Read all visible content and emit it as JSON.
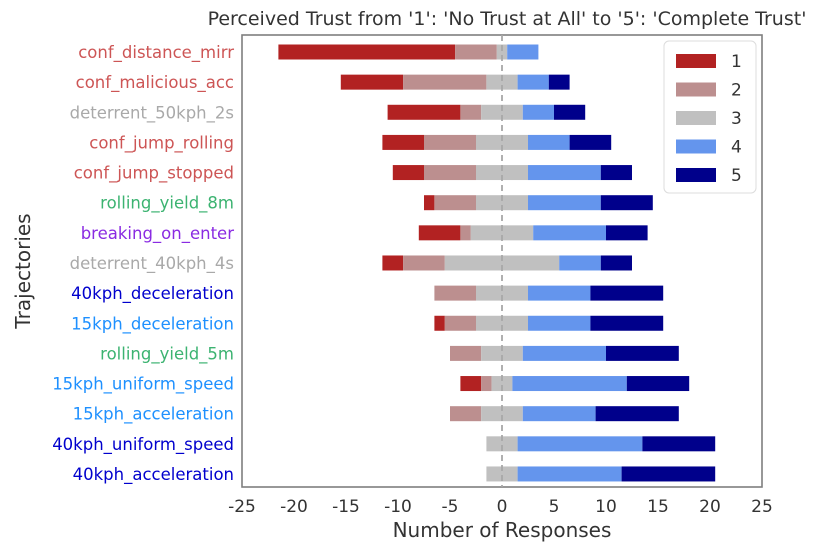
{
  "chart_data": {
    "type": "bar",
    "orientation": "horizontal-diverging",
    "title": "Perceived Trust from '1': 'No Trust at All' to '5': 'Complete Trust'",
    "xlabel": "Number of Responses",
    "ylabel": "Trajectories",
    "xlim": [
      -25,
      25
    ],
    "xticks": [
      -25,
      -20,
      -15,
      -10,
      -5,
      0,
      5,
      10,
      15,
      20,
      25
    ],
    "zero_line": "dashed",
    "legend_position": "top-right",
    "legend": [
      {
        "label": "1",
        "color": "#b22222"
      },
      {
        "label": "2",
        "color": "#bc8f8f"
      },
      {
        "label": "3",
        "color": "#c0c0c0"
      },
      {
        "label": "4",
        "color": "#6495ed"
      },
      {
        "label": "5",
        "color": "#00008b"
      }
    ],
    "categories": [
      {
        "name": "conf_distance_mirr",
        "color": "#cd5555"
      },
      {
        "name": "conf_malicious_acc",
        "color": "#cd5555"
      },
      {
        "name": "deterrent_50kph_2s",
        "color": "#a9a9a9"
      },
      {
        "name": "conf_jump_rolling",
        "color": "#cd5555"
      },
      {
        "name": "conf_jump_stopped",
        "color": "#cd5555"
      },
      {
        "name": "rolling_yield_8m",
        "color": "#3cb371"
      },
      {
        "name": "breaking_on_enter",
        "color": "#8a2be2"
      },
      {
        "name": "deterrent_40kph_4s",
        "color": "#a9a9a9"
      },
      {
        "name": "40kph_deceleration",
        "color": "#0000cd"
      },
      {
        "name": "15kph_deceleration",
        "color": "#1e90ff"
      },
      {
        "name": "rolling_yield_5m",
        "color": "#3cb371"
      },
      {
        "name": "15kph_uniform_speed",
        "color": "#1e90ff"
      },
      {
        "name": "15kph_acceleration",
        "color": "#1e90ff"
      },
      {
        "name": "40kph_uniform_speed",
        "color": "#0000cd"
      },
      {
        "name": "40kph_acceleration",
        "color": "#0000cd"
      }
    ],
    "series": [
      {
        "name": "1",
        "values": [
          17,
          6,
          7,
          4,
          3,
          1,
          4,
          2,
          0,
          1,
          0,
          2,
          0,
          0,
          0
        ]
      },
      {
        "name": "2",
        "values": [
          4,
          8,
          2,
          5,
          5,
          4,
          1,
          4,
          4,
          3,
          3,
          1,
          3,
          0,
          0
        ]
      },
      {
        "name": "3",
        "values": [
          1,
          3,
          4,
          5,
          5,
          5,
          6,
          11,
          5,
          5,
          4,
          2,
          4,
          3,
          3
        ]
      },
      {
        "name": "4",
        "values": [
          3,
          3,
          3,
          4,
          7,
          7,
          7,
          4,
          6,
          6,
          8,
          11,
          7,
          12,
          10
        ]
      },
      {
        "name": "5",
        "values": [
          0,
          2,
          3,
          4,
          3,
          5,
          4,
          3,
          7,
          7,
          7,
          6,
          8,
          7,
          9
        ]
      }
    ]
  }
}
